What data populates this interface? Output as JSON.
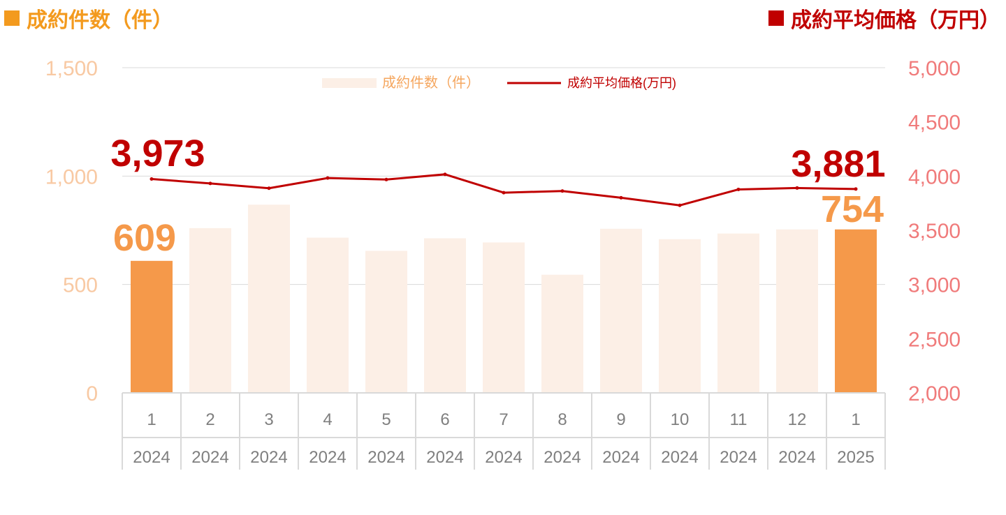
{
  "header": {
    "left_title": "成約件数（件）",
    "right_title": "成約平均価格（万円）"
  },
  "colors": {
    "bar_light": "#fcefe6",
    "bar_highlight": "#f5994a",
    "line": "#c00000",
    "left_axis_text": "#f8c9a3",
    "right_axis_text": "#f07b7b",
    "grid": "#d9d9d9",
    "header_left": "#f39a1e",
    "header_right": "#c00000"
  },
  "chart_data": {
    "type": "bar",
    "categories": [
      "1",
      "2",
      "3",
      "4",
      "5",
      "6",
      "7",
      "8",
      "9",
      "10",
      "11",
      "12",
      "1"
    ],
    "years": [
      "2024",
      "2024",
      "2024",
      "2024",
      "2024",
      "2024",
      "2024",
      "2024",
      "2024",
      "2024",
      "2024",
      "2024",
      "2025"
    ],
    "series": [
      {
        "name": "成約件数（件）",
        "type": "bar",
        "axis": "left",
        "values": [
          609,
          760,
          868,
          716,
          655,
          713,
          694,
          545,
          757,
          709,
          735,
          754,
          754
        ],
        "highlight": [
          true,
          false,
          false,
          false,
          false,
          false,
          false,
          false,
          false,
          false,
          false,
          false,
          true
        ]
      },
      {
        "name": "成約平均価格(万円)",
        "type": "line",
        "axis": "right",
        "values": [
          3973,
          3932,
          3888,
          3982,
          3968,
          4016,
          3847,
          3862,
          3800,
          3730,
          3877,
          3890,
          3881
        ]
      }
    ],
    "left_axis": {
      "ylim": [
        0,
        1500
      ],
      "ticks": [
        "0",
        "500",
        "1,000",
        "1,500"
      ]
    },
    "right_axis": {
      "ylim": [
        2000,
        5000
      ],
      "ticks": [
        "2,000",
        "2,500",
        "3,000",
        "3,500",
        "4,000",
        "4,500",
        "5,000"
      ]
    },
    "annotations": {
      "bar_first": "609",
      "bar_last": "754",
      "line_first": "3,973",
      "line_last": "3,881"
    },
    "legend_position": "top-center",
    "grid": true
  }
}
